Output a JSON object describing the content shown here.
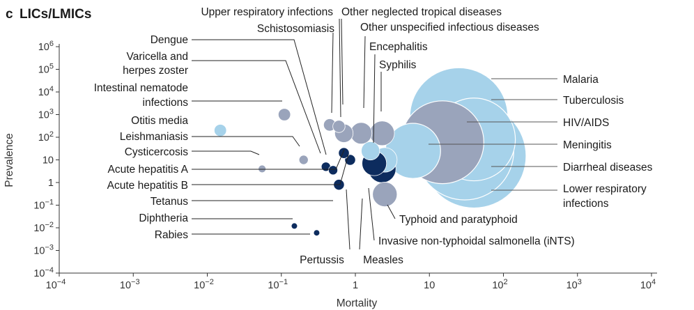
{
  "chart_data": {
    "type": "scatter",
    "panel_letter": "c",
    "title": "LICs/LMICs",
    "xlabel": "Mortality",
    "ylabel": "Prevalence",
    "xscale": "log",
    "yscale": "log",
    "xlim_exp": [
      -4,
      4
    ],
    "ylim_exp": [
      -4,
      6
    ],
    "x_ticks": [
      {
        "base": "10",
        "exp": "−4"
      },
      {
        "base": "10",
        "exp": "−3"
      },
      {
        "base": "10",
        "exp": "−2"
      },
      {
        "base": "10",
        "exp": "−1"
      },
      {
        "base": "1",
        "exp": ""
      },
      {
        "base": "10",
        "exp": ""
      },
      {
        "base": "10",
        "exp": "2"
      },
      {
        "base": "10",
        "exp": "3"
      },
      {
        "base": "10",
        "exp": "4"
      }
    ],
    "y_ticks": [
      {
        "base": "10",
        "exp": "−4"
      },
      {
        "base": "10",
        "exp": "−3"
      },
      {
        "base": "10",
        "exp": "−2"
      },
      {
        "base": "10",
        "exp": "−1"
      },
      {
        "base": "1",
        "exp": ""
      },
      {
        "base": "10",
        "exp": ""
      },
      {
        "base": "10",
        "exp": "2"
      },
      {
        "base": "10",
        "exp": "3"
      },
      {
        "base": "10",
        "exp": "4"
      },
      {
        "base": "10",
        "exp": "5"
      },
      {
        "base": "10",
        "exp": "6"
      }
    ],
    "colors": {
      "light_blue": "#a6d2ea",
      "gray_blue": "#9aa4bb",
      "navy": "#0d2c5e",
      "line": "#333333"
    },
    "points": [
      {
        "label": "Malaria",
        "mortality": 25,
        "prevalence": 800,
        "bubble": 32,
        "color": "light_blue"
      },
      {
        "label": "Diarrheal diseases",
        "mortality": 40,
        "prevalence": 15,
        "bubble": 34,
        "color": "light_blue"
      },
      {
        "label": "Lower respiratory infections",
        "mortality": 30,
        "prevalence": 25,
        "bubble": 32,
        "color": "light_blue"
      },
      {
        "label": "Tuberculosis",
        "mortality": 40,
        "prevalence": 80,
        "bubble": 27,
        "color": "light_blue"
      },
      {
        "label": "HIV/AIDS",
        "mortality": 15,
        "prevalence": 60,
        "bubble": 27,
        "color": "gray_blue"
      },
      {
        "label": "Meningitis",
        "mortality": 6,
        "prevalence": 25,
        "bubble": 18,
        "color": "light_blue"
      },
      {
        "label": "Typhoid and paratyphoid",
        "mortality": 2.5,
        "prevalence": 0.3,
        "bubble": 8,
        "color": "gray_blue"
      },
      {
        "label": "Invasive non-typhoidal salmonella (iNTS)",
        "mortality": 2.3,
        "prevalence": 4,
        "bubble": 9,
        "color": "navy"
      },
      {
        "label": "Encephalitis",
        "mortality": 1.2,
        "prevalence": 150,
        "bubble": 7,
        "color": "gray_blue"
      },
      {
        "label": "Syphilis",
        "mortality": 2.3,
        "prevalence": 150,
        "bubble": 8,
        "color": "gray_blue"
      },
      {
        "label": "Other unspecified infectious diseases",
        "mortality": 2.5,
        "prevalence": 10,
        "bubble": 8,
        "color": "light_blue"
      },
      {
        "label": "Other neglected tropical diseases",
        "mortality": 0.45,
        "prevalence": 350,
        "bubble": 4,
        "color": "gray_blue"
      },
      {
        "label": "Upper respiratory infections",
        "mortality": 0.7,
        "prevalence": 150,
        "bubble": 6,
        "color": "gray_blue"
      },
      {
        "label": "Schistosomiasis",
        "mortality": 0.6,
        "prevalence": 300,
        "bubble": 4,
        "color": "gray_blue"
      },
      {
        "label": "Measles",
        "mortality": 1.8,
        "prevalence": 7,
        "bubble": 8,
        "color": "navy"
      },
      {
        "label": "Pertussis",
        "mortality": 1.6,
        "prevalence": 25,
        "bubble": 6,
        "color": "light_blue"
      },
      {
        "label": "Dengue",
        "mortality": 0.4,
        "prevalence": 5,
        "bubble": 3,
        "color": "navy"
      },
      {
        "label": "Varicella and herpes zoster",
        "mortality": 0.5,
        "prevalence": 3.5,
        "bubble": 3,
        "color": "navy"
      },
      {
        "label": "Intestinal nematode infections",
        "mortality": 0.11,
        "prevalence": 1000,
        "bubble": 4,
        "color": "gray_blue"
      },
      {
        "label": "Otitis media",
        "mortality": 0.015,
        "prevalence": 200,
        "bubble": 4,
        "color": "light_blue"
      },
      {
        "label": "Leishmaniasis",
        "mortality": 0.2,
        "prevalence": 10,
        "bubble": 3,
        "color": "gray_blue"
      },
      {
        "label": "Cysticercosis",
        "mortality": 0.055,
        "prevalence": 4,
        "bubble": 2.5,
        "color": "gray_blue"
      },
      {
        "label": "Acute hepatitis A",
        "mortality": 0.85,
        "prevalence": 10,
        "bubble": 3.5,
        "color": "navy"
      },
      {
        "label": "Acute hepatitis B",
        "mortality": 0.7,
        "prevalence": 20,
        "bubble": 3.5,
        "color": "navy"
      },
      {
        "label": "Tetanus",
        "mortality": 0.6,
        "prevalence": 0.8,
        "bubble": 3.5,
        "color": "navy"
      },
      {
        "label": "Diphtheria",
        "mortality": 0.15,
        "prevalence": 0.012,
        "bubble": 2,
        "color": "navy"
      },
      {
        "label": "Rabies",
        "mortality": 0.3,
        "prevalence": 0.006,
        "bubble": 2,
        "color": "navy"
      }
    ],
    "labels": [
      {
        "id": "upper",
        "lines": [
          "Upper respiratory infections"
        ]
      },
      {
        "id": "ontd",
        "lines": [
          "Other neglected tropical diseases"
        ]
      },
      {
        "id": "schisto",
        "lines": [
          "Schistosomiasis"
        ]
      },
      {
        "id": "ouid",
        "lines": [
          "Other unspecified infectious diseases"
        ]
      },
      {
        "id": "dengue",
        "lines": [
          "Dengue"
        ]
      },
      {
        "id": "enceph",
        "lines": [
          "Encephalitis"
        ]
      },
      {
        "id": "varicella",
        "lines": [
          "Varicella and",
          "herpes zoster"
        ]
      },
      {
        "id": "syphilis",
        "lines": [
          "Syphilis"
        ]
      },
      {
        "id": "nematode",
        "lines": [
          "Intestinal nematode",
          "infections"
        ]
      },
      {
        "id": "malaria",
        "lines": [
          "Malaria"
        ]
      },
      {
        "id": "tb",
        "lines": [
          "Tuberculosis"
        ]
      },
      {
        "id": "otitis",
        "lines": [
          "Otitis media"
        ]
      },
      {
        "id": "hiv",
        "lines": [
          "HIV/AIDS"
        ]
      },
      {
        "id": "leish",
        "lines": [
          "Leishmaniasis"
        ]
      },
      {
        "id": "mening",
        "lines": [
          "Meningitis"
        ]
      },
      {
        "id": "cystic",
        "lines": [
          "Cysticercosis"
        ]
      },
      {
        "id": "diarrheal",
        "lines": [
          "Diarrheal diseases"
        ]
      },
      {
        "id": "hepA",
        "lines": [
          "Acute hepatitis A"
        ]
      },
      {
        "id": "lri",
        "lines": [
          "Lower respiratory",
          "infections"
        ]
      },
      {
        "id": "hepB",
        "lines": [
          "Acute hepatitis B"
        ]
      },
      {
        "id": "tetanus",
        "lines": [
          "Tetanus"
        ]
      },
      {
        "id": "typhoid",
        "lines": [
          "Typhoid and paratyphoid"
        ]
      },
      {
        "id": "diphtheria",
        "lines": [
          "Diphtheria"
        ]
      },
      {
        "id": "ints",
        "lines": [
          "Invasive non-typhoidal salmonella (iNTS)"
        ]
      },
      {
        "id": "rabies",
        "lines": [
          "Rabies"
        ]
      },
      {
        "id": "pertussis",
        "lines": [
          "Pertussis"
        ]
      },
      {
        "id": "measles",
        "lines": [
          "Measles"
        ]
      }
    ]
  }
}
